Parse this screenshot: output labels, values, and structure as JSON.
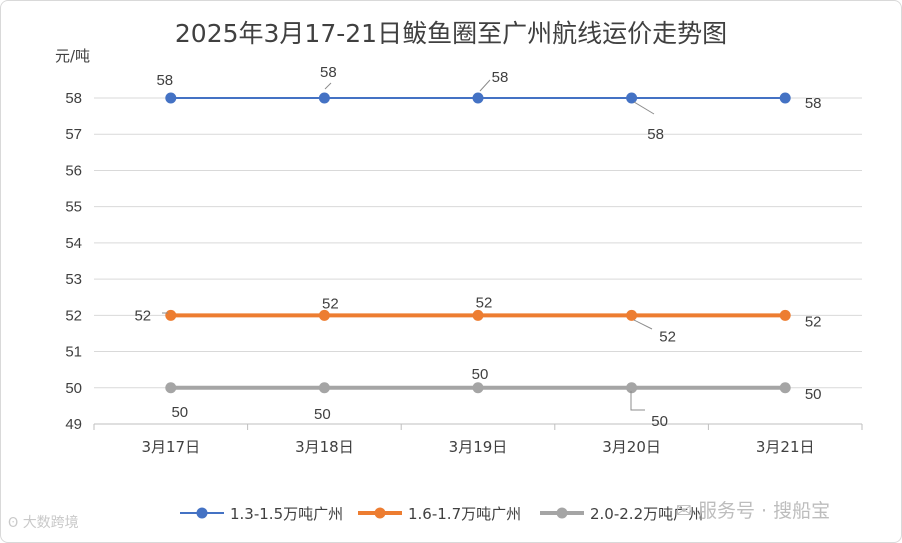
{
  "chart_data": {
    "type": "line",
    "title": "2025年3月17-21日鲅鱼圈至广州航线运价走势图",
    "ylabel": "元/吨",
    "xlabel": "",
    "categories": [
      "3月17日",
      "3月18日",
      "3月19日",
      "3月20日",
      "3月21日"
    ],
    "ylim": [
      49,
      58
    ],
    "yticks": [
      49,
      50,
      51,
      52,
      53,
      54,
      55,
      56,
      57,
      58
    ],
    "grid": true,
    "legend_position": "bottom",
    "series": [
      {
        "name": "1.3-1.5万吨广州",
        "values": [
          58,
          58,
          58,
          58,
          58
        ],
        "color": "#4472c4"
      },
      {
        "name": "1.6-1.7万吨广州",
        "values": [
          52,
          52,
          52,
          52,
          52
        ],
        "color": "#ed7d31"
      },
      {
        "name": "2.0-2.2万吨广州",
        "values": [
          50,
          50,
          50,
          50,
          50
        ],
        "color": "#a5a5a5"
      }
    ]
  },
  "watermarks": {
    "left": "大数跨境",
    "right": "服务号 · 搜船宝"
  }
}
